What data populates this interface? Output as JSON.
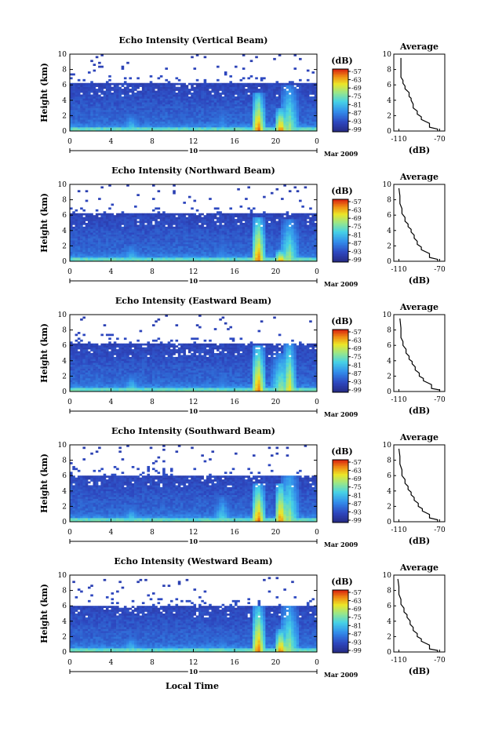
{
  "figure": {
    "ylabel": "Height (km)",
    "xlabel": "Local Time",
    "month_label": "Mar 2009",
    "day_label": "10",
    "x_ticks": [
      "0",
      "4",
      "8",
      "12",
      "16",
      "20",
      "0"
    ],
    "y_ticks": [
      "0",
      "2",
      "4",
      "6",
      "8",
      "10"
    ],
    "cbar_unit": "(dB)",
    "cbar_ticks": [
      "-57",
      "-63",
      "-69",
      "-75",
      "-81",
      "-87",
      "-93",
      "-99"
    ],
    "avg_title": "Average",
    "avg_xticks": [
      "-110",
      "-70"
    ],
    "avg_xlabel": "(dB)",
    "colors": {
      "background_echo": "#2b3690",
      "weak": "#3a5fd0",
      "mid": "#4fd0e0",
      "strong": "#e8e020",
      "max": "#e03010"
    }
  },
  "chart_data": [
    {
      "type": "heatmap",
      "title": "Echo Intensity (Vertical Beam)",
      "x_range_hours": [
        0,
        24
      ],
      "y_range_km": [
        0,
        10
      ],
      "color_range_dB": [
        -99,
        -57
      ],
      "echo_top_km": 6.2,
      "features": [
        {
          "x_hour": 6.0,
          "top_km": 2.2,
          "peak_dB": -75
        },
        {
          "x_hour": 14.8,
          "top_km": 3.2,
          "peak_dB": -81
        },
        {
          "x_hour": 18.3,
          "top_km": 5.0,
          "peak_dB": -57
        },
        {
          "x_hour": 20.5,
          "top_km": 3.0,
          "peak_dB": -57
        },
        {
          "x_hour": 21.3,
          "top_km": 6.0,
          "peak_dB": -69
        }
      ],
      "average_profile": {
        "x_dB": [
          -108,
          -108,
          -106,
          -104,
          -100,
          -98,
          -96,
          -92,
          -88,
          -80,
          -72
        ],
        "height_km": [
          9.5,
          7.0,
          6.2,
          5.5,
          4.5,
          4.0,
          3.0,
          2.2,
          1.5,
          0.5,
          0.0
        ]
      }
    },
    {
      "type": "heatmap",
      "title": "Echo Intensity (Northward Beam)",
      "x_range_hours": [
        0,
        24
      ],
      "y_range_km": [
        0,
        10
      ],
      "color_range_dB": [
        -99,
        -57
      ],
      "echo_top_km": 6.2,
      "features": [
        {
          "x_hour": 6.0,
          "top_km": 2.2,
          "peak_dB": -75
        },
        {
          "x_hour": 14.8,
          "top_km": 3.0,
          "peak_dB": -81
        },
        {
          "x_hour": 18.3,
          "top_km": 5.8,
          "peak_dB": -57
        },
        {
          "x_hour": 20.5,
          "top_km": 1.5,
          "peak_dB": -57
        },
        {
          "x_hour": 21.3,
          "top_km": 5.5,
          "peak_dB": -69
        }
      ],
      "average_profile": {
        "x_dB": [
          -110,
          -109,
          -107,
          -104,
          -101,
          -98,
          -95,
          -92,
          -88,
          -80,
          -72
        ],
        "height_km": [
          9.5,
          7.5,
          6.2,
          5.2,
          4.5,
          3.8,
          3.0,
          2.2,
          1.5,
          0.5,
          0.0
        ]
      }
    },
    {
      "type": "heatmap",
      "title": "Echo Intensity (Eastward Beam)",
      "x_range_hours": [
        0,
        24
      ],
      "y_range_km": [
        0,
        10
      ],
      "color_range_dB": [
        -99,
        -57
      ],
      "echo_top_km": 6.2,
      "features": [
        {
          "x_hour": 6.0,
          "top_km": 2.2,
          "peak_dB": -75
        },
        {
          "x_hour": 14.8,
          "top_km": 2.8,
          "peak_dB": -81
        },
        {
          "x_hour": 18.3,
          "top_km": 6.0,
          "peak_dB": -57
        },
        {
          "x_hour": 20.5,
          "top_km": 5.0,
          "peak_dB": -69
        },
        {
          "x_hour": 21.3,
          "top_km": 6.5,
          "peak_dB": -63
        }
      ],
      "average_profile": {
        "x_dB": [
          -109,
          -108,
          -106,
          -103,
          -100,
          -97,
          -94,
          -90,
          -86,
          -78,
          -70
        ],
        "height_km": [
          9.5,
          7.0,
          6.0,
          5.0,
          4.2,
          3.6,
          2.8,
          2.0,
          1.4,
          0.4,
          0.0
        ]
      }
    },
    {
      "type": "heatmap",
      "title": "Echo Intensity (Southward Beam)",
      "x_range_hours": [
        0,
        24
      ],
      "y_range_km": [
        0,
        10
      ],
      "color_range_dB": [
        -99,
        -57
      ],
      "echo_top_km": 6.0,
      "features": [
        {
          "x_hour": 6.0,
          "top_km": 2.0,
          "peak_dB": -75
        },
        {
          "x_hour": 14.8,
          "top_km": 3.5,
          "peak_dB": -75
        },
        {
          "x_hour": 18.3,
          "top_km": 5.0,
          "peak_dB": -57
        },
        {
          "x_hour": 20.5,
          "top_km": 5.0,
          "peak_dB": -57
        },
        {
          "x_hour": 21.3,
          "top_km": 7.0,
          "peak_dB": -69
        }
      ],
      "average_profile": {
        "x_dB": [
          -110,
          -109,
          -107,
          -104,
          -101,
          -98,
          -95,
          -91,
          -87,
          -80,
          -72
        ],
        "height_km": [
          9.5,
          7.5,
          6.0,
          5.0,
          4.2,
          3.5,
          2.8,
          2.0,
          1.4,
          0.5,
          0.0
        ]
      }
    },
    {
      "type": "heatmap",
      "title": "Echo Intensity (Westward Beam)",
      "x_range_hours": [
        0,
        24
      ],
      "y_range_km": [
        0,
        10
      ],
      "color_range_dB": [
        -99,
        -57
      ],
      "echo_top_km": 6.0,
      "features": [
        {
          "x_hour": 6.0,
          "top_km": 2.0,
          "peak_dB": -75
        },
        {
          "x_hour": 14.8,
          "top_km": 2.5,
          "peak_dB": -81
        },
        {
          "x_hour": 18.3,
          "top_km": 6.0,
          "peak_dB": -57
        },
        {
          "x_hour": 20.5,
          "top_km": 3.0,
          "peak_dB": -57
        },
        {
          "x_hour": 21.3,
          "top_km": 6.5,
          "peak_dB": -69
        }
      ],
      "average_profile": {
        "x_dB": [
          -111,
          -110,
          -108,
          -105,
          -102,
          -99,
          -96,
          -92,
          -88,
          -80,
          -72
        ],
        "height_km": [
          9.5,
          7.5,
          6.2,
          5.2,
          4.5,
          3.6,
          2.8,
          2.0,
          1.4,
          0.4,
          0.0
        ]
      }
    }
  ]
}
